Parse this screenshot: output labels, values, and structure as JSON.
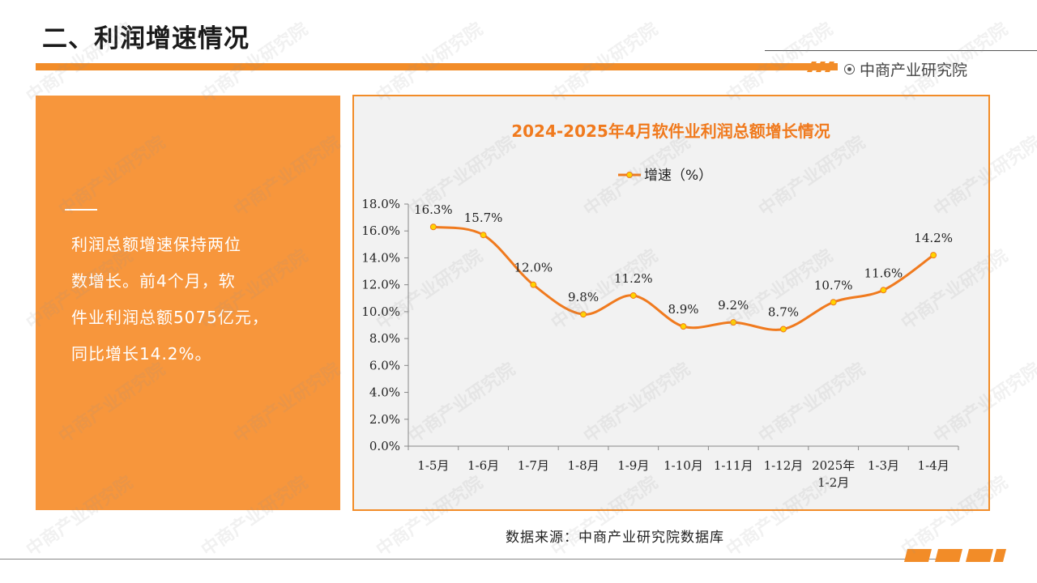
{
  "header": {
    "title": "二、利润增速情况",
    "brand": "中商产业研究院"
  },
  "summary": {
    "lines": [
      "利润总额增速保持两位",
      "数增长。前4个月，软",
      "件业利润总额5075亿元，",
      "同比增长14.2%。"
    ]
  },
  "footer": {
    "source": "数据来源：中商产业研究院数据库"
  },
  "watermark": {
    "text": "中商产业研究院"
  },
  "colors": {
    "accent": "#f28c28",
    "card": "#f7963c",
    "line": "#f07a1e",
    "marker": "#ffd400"
  },
  "chart_data": {
    "type": "line",
    "title": "2024-2025年4月软件业利润总额增长情况",
    "categories": [
      "1-5月",
      "1-6月",
      "1-7月",
      "1-8月",
      "1-9月",
      "1-10月",
      "1-11月",
      "1-12月",
      "2025年\n1-2月",
      "1-3月",
      "1-4月"
    ],
    "series": [
      {
        "name": "增速（%）",
        "values": [
          16.3,
          15.7,
          12.0,
          9.8,
          11.2,
          8.9,
          9.2,
          8.7,
          10.7,
          11.6,
          14.2
        ],
        "labels": [
          "16.3%",
          "15.7%",
          "12.0%",
          "9.8%",
          "11.2%",
          "8.9%",
          "9.2%",
          "8.7%",
          "10.7%",
          "11.6%",
          "14.2%"
        ]
      }
    ],
    "yticks": [
      "0.0%",
      "2.0%",
      "4.0%",
      "6.0%",
      "8.0%",
      "10.0%",
      "12.0%",
      "14.0%",
      "16.0%",
      "18.0%"
    ],
    "ylim": [
      0,
      18
    ],
    "legend": "top",
    "grid": false,
    "smooth": true
  }
}
